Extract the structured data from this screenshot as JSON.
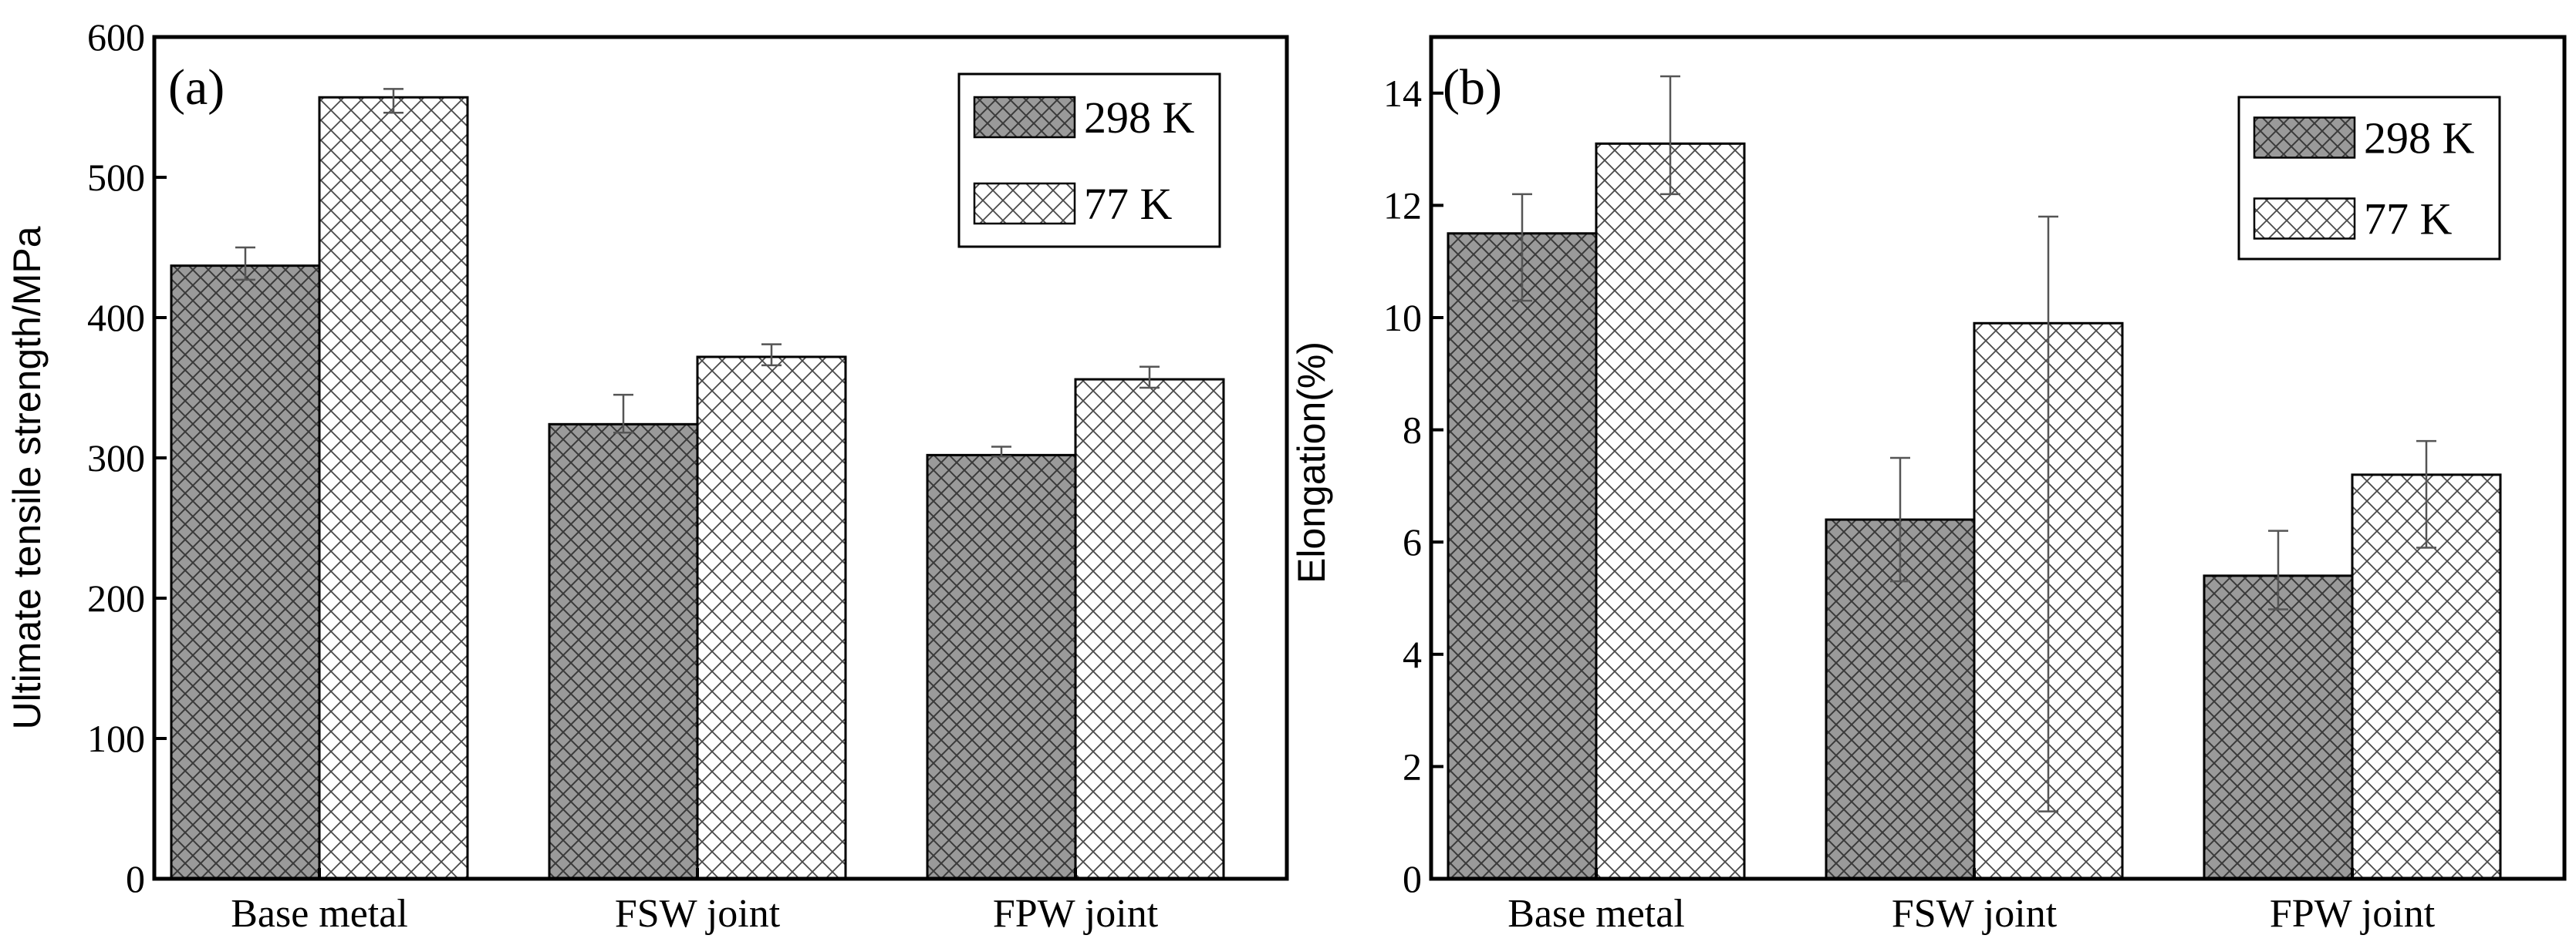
{
  "chart_data": [
    {
      "type": "bar",
      "panel_label": "(a)",
      "title": "",
      "xlabel": "",
      "ylabel": "Ultimate tensile strength/MPa",
      "categories": [
        "Base metal",
        "FSW joint",
        "FPW joint"
      ],
      "ylim": [
        0,
        600
      ],
      "yticks": [
        "0",
        "100",
        "200",
        "300",
        "400",
        "500",
        "600"
      ],
      "ytick_values": [
        0,
        100,
        200,
        300,
        400,
        500,
        600
      ],
      "legend_position": "top-right",
      "series": [
        {
          "name": "298 K",
          "pattern": "dense-crosshatch-gray",
          "values": [
            437,
            324,
            302
          ],
          "err_low": [
            427,
            318,
            301
          ],
          "err_high": [
            450,
            345,
            308
          ]
        },
        {
          "name": "77 K",
          "pattern": "sparse-crosshatch-white",
          "values": [
            557,
            372,
            356
          ],
          "err_low": [
            546,
            366,
            350
          ],
          "err_high": [
            563,
            381,
            365
          ]
        }
      ]
    },
    {
      "type": "bar",
      "panel_label": "(b)",
      "title": "",
      "xlabel": "",
      "ylabel": "Elongation(%)",
      "categories": [
        "Base metal",
        "FSW joint",
        "FPW joint"
      ],
      "ylim": [
        0,
        15
      ],
      "yticks": [
        "0",
        "2",
        "4",
        "6",
        "8",
        "10",
        "12",
        "14"
      ],
      "ytick_values": [
        0,
        2,
        4,
        6,
        8,
        10,
        12,
        14
      ],
      "legend_position": "top-right",
      "series": [
        {
          "name": "298 K",
          "pattern": "dense-crosshatch-gray",
          "values": [
            11.5,
            6.4,
            5.4
          ],
          "err_low": [
            10.3,
            5.3,
            4.8
          ],
          "err_high": [
            12.2,
            7.5,
            6.2
          ]
        },
        {
          "name": "77 K",
          "pattern": "sparse-crosshatch-white",
          "values": [
            13.1,
            9.9,
            7.2
          ],
          "err_low": [
            12.2,
            1.2,
            5.9
          ],
          "err_high": [
            14.3,
            11.8,
            7.8
          ]
        }
      ]
    }
  ],
  "colors": {
    "series_298K_fill": "#9a9a9a",
    "series_77K_fill": "#ffffff",
    "axis": "#000000",
    "error_bar": "#555555"
  }
}
